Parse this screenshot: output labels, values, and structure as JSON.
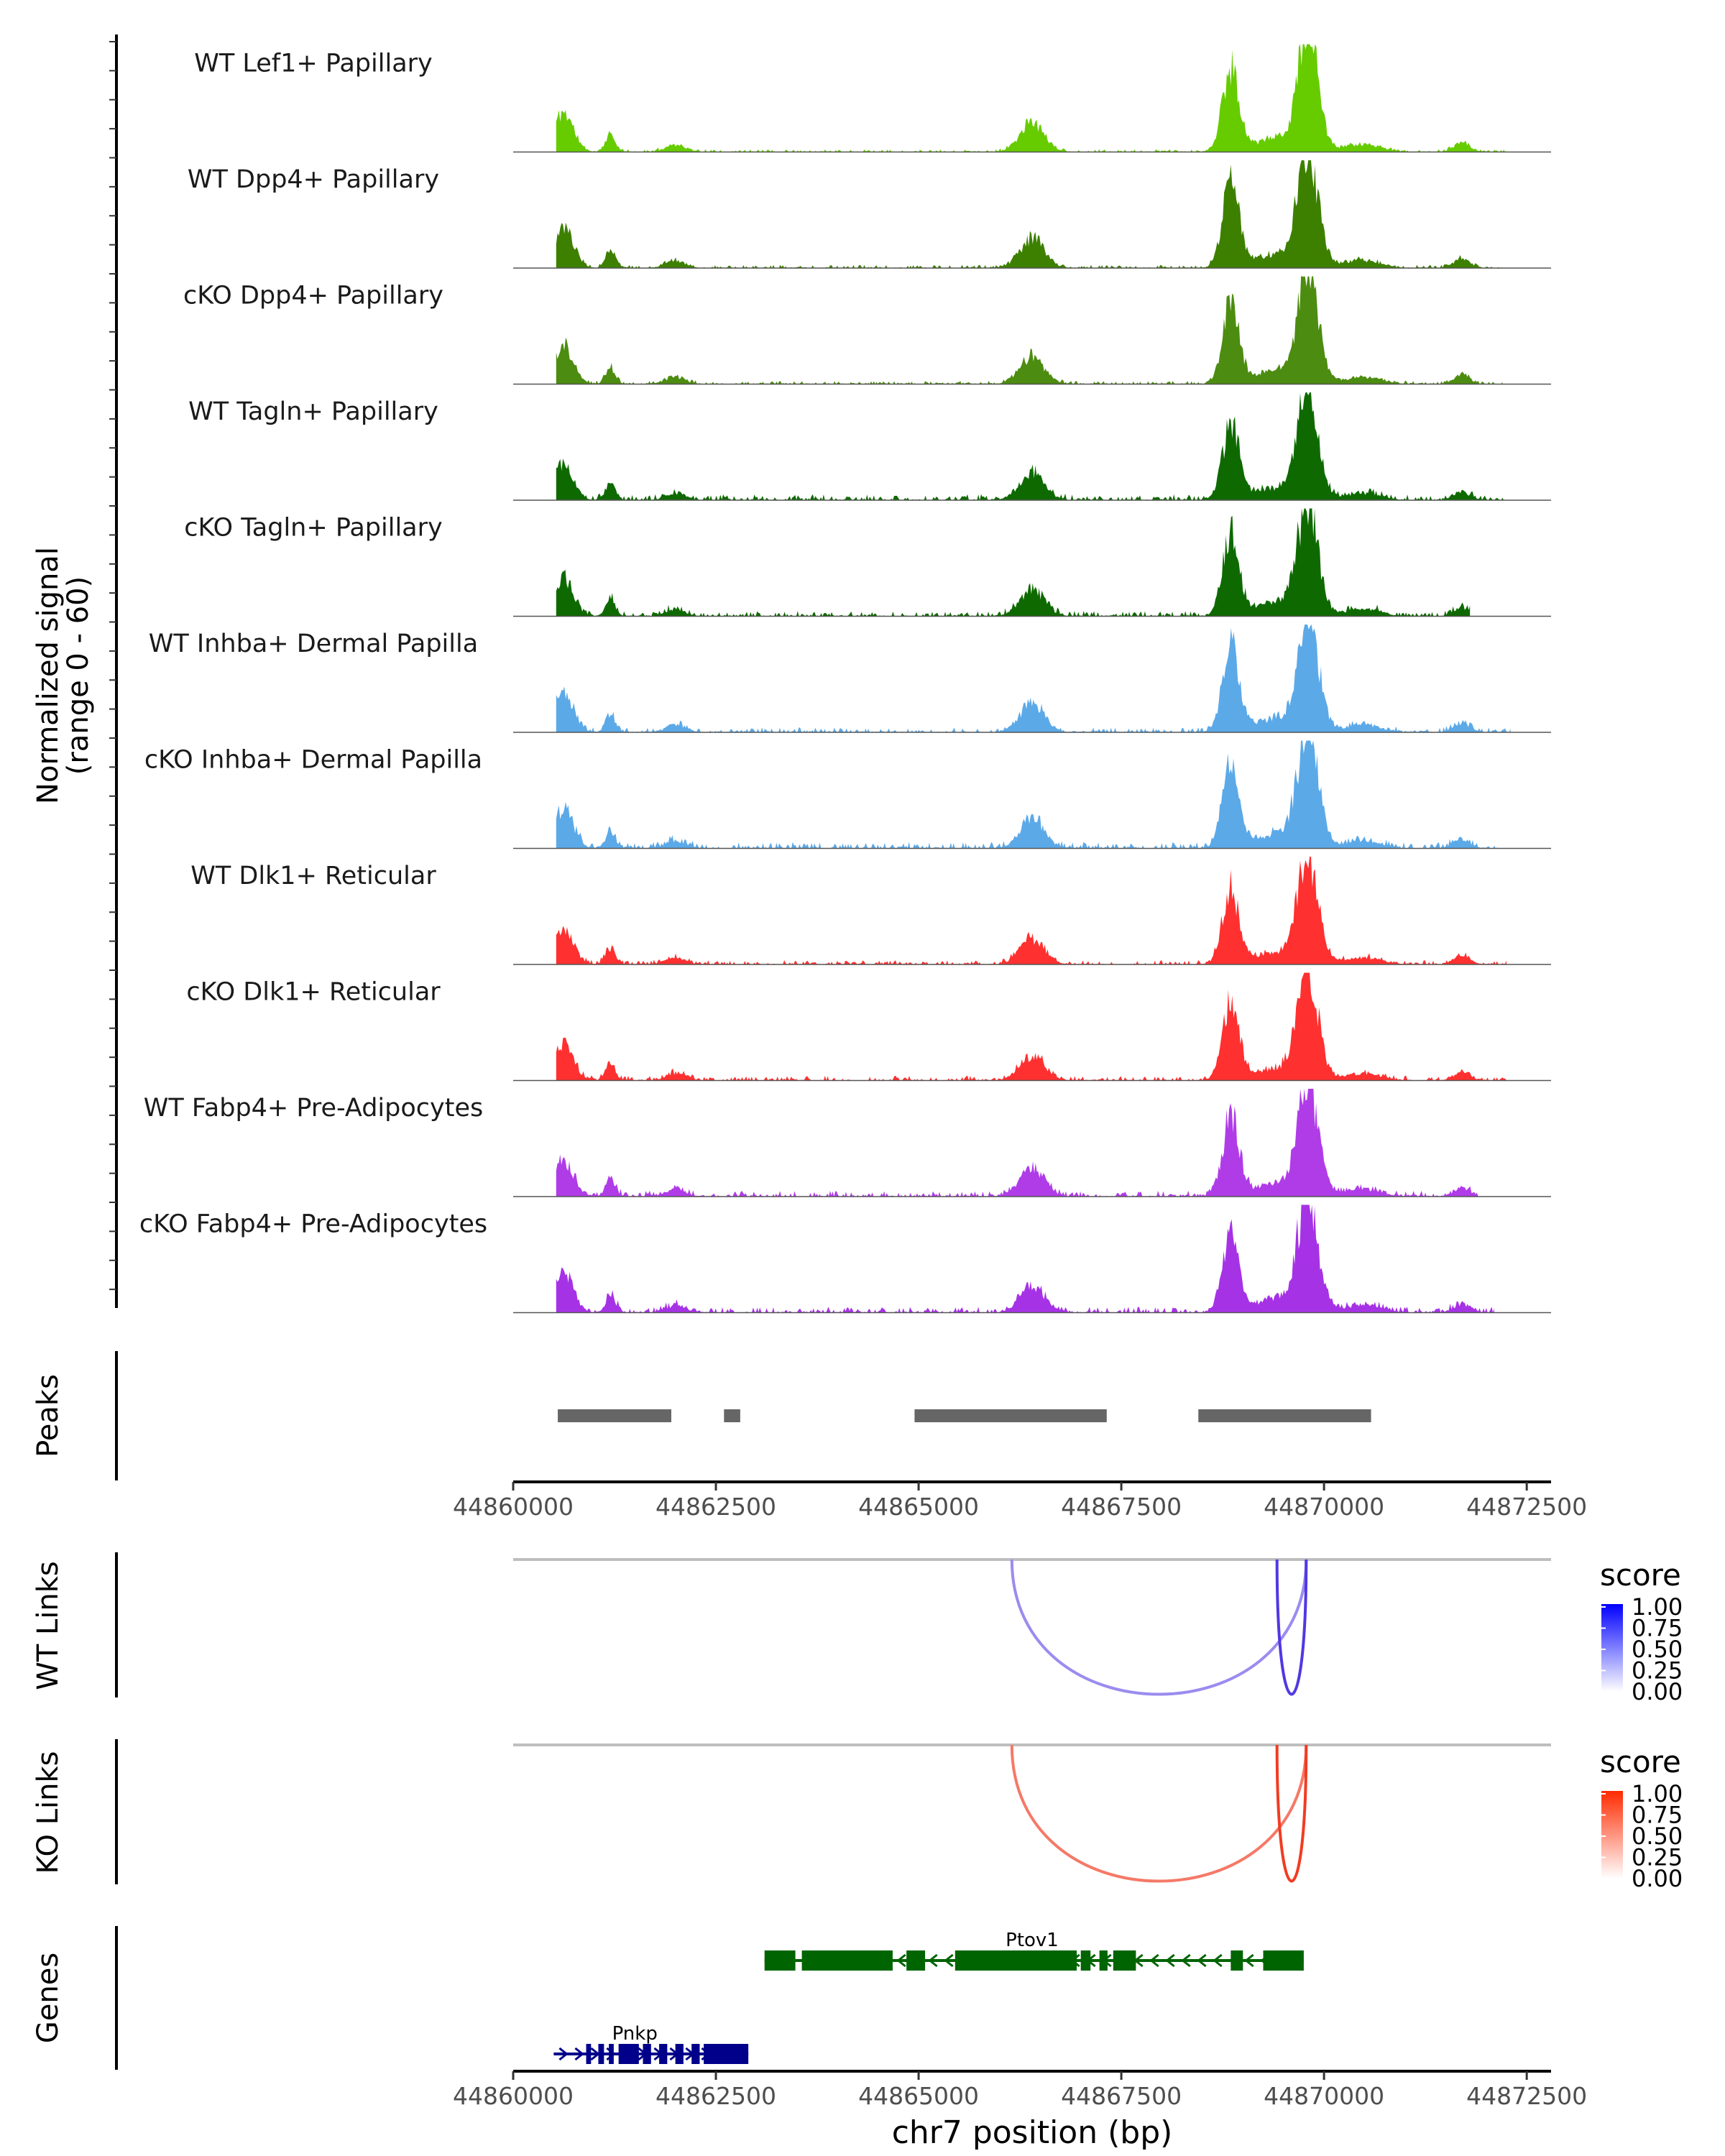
{
  "chart_data": [
    {
      "type": "area",
      "panel": "coverage",
      "ylabel": "Normalized signal",
      "ylabel_sub": "(range 0 - 60)",
      "ylim": [
        0,
        60
      ],
      "xlim": [
        44860000,
        44872800
      ],
      "track_baseline_extent": [
        44860000,
        44872800
      ],
      "peaks": [
        [
          44860620,
          0.12,
          22
        ],
        [
          44861200,
          0.06,
          10
        ],
        [
          44862000,
          0.12,
          4
        ],
        [
          44866400,
          0.15,
          16
        ],
        [
          44868850,
          0.1,
          46
        ],
        [
          44869800,
          0.12,
          63
        ],
        [
          44869500,
          0.35,
          8
        ],
        [
          44870500,
          0.2,
          4
        ],
        [
          44871700,
          0.1,
          5
        ]
      ],
      "series": [
        {
          "name": "WT Lef1+ Papillary",
          "color": "#66CC00",
          "data_end": 44872250,
          "scale": 1.0,
          "noise": 0.25,
          "seed": 11
        },
        {
          "name": "WT Dpp4+ Papillary",
          "color": "#3D8000",
          "data_end": 44872250,
          "scale": 1.0,
          "noise": 0.3,
          "seed": 23
        },
        {
          "name": "cKO Dpp4+ Papillary",
          "color": "#4C8C10",
          "data_end": 44872200,
          "scale": 0.95,
          "noise": 0.3,
          "seed": 37
        },
        {
          "name": "WT Tagln+ Papillary",
          "color": "#0E6A00",
          "data_end": 44872250,
          "scale": 0.9,
          "noise": 0.55,
          "seed": 41
        },
        {
          "name": "cKO Tagln+ Papillary",
          "color": "#0E6A00",
          "data_end": 44871800,
          "scale": 0.95,
          "noise": 0.5,
          "seed": 53
        },
        {
          "name": "WT Inhba+ Dermal Papilla",
          "color": "#5CA9E8",
          "data_end": 44872300,
          "scale": 1.0,
          "noise": 0.45,
          "seed": 67
        },
        {
          "name": "cKO Inhba+ Dermal Papilla",
          "color": "#5CA9E8",
          "data_end": 44872200,
          "scale": 1.0,
          "noise": 0.6,
          "seed": 79
        },
        {
          "name": "WT Dlk1+ Reticular",
          "color": "#FF3030",
          "data_end": 44872250,
          "scale": 0.9,
          "noise": 0.4,
          "seed": 83
        },
        {
          "name": "cKO Dlk1+ Reticular",
          "color": "#FF3030",
          "data_end": 44872250,
          "scale": 0.9,
          "noise": 0.45,
          "seed": 97
        },
        {
          "name": "WT Fabp4+ Pre-Adipocytes",
          "color": "#B03CE8",
          "data_end": 44871900,
          "scale": 0.95,
          "noise": 0.55,
          "seed": 101
        },
        {
          "name": "cKO Fabp4+ Pre-Adipocytes",
          "color": "#A632E6",
          "data_end": 44872100,
          "scale": 0.95,
          "noise": 0.55,
          "seed": 113
        }
      ]
    },
    {
      "type": "table",
      "panel": "peaks",
      "ylabel": "Peaks",
      "color": "#666666",
      "intervals": [
        [
          44860550,
          44861950
        ],
        [
          44862600,
          44862800
        ],
        [
          44864950,
          44867320
        ],
        [
          44868450,
          44870580
        ]
      ],
      "xticks": [
        44860000,
        44862500,
        44865000,
        44867500,
        44870000,
        44872500
      ],
      "xtick_labels": [
        "44860000",
        "44862500",
        "44865000",
        "44867500",
        "44870000",
        "44872500"
      ]
    },
    {
      "type": "line",
      "panel": "links",
      "ylabel": "WT Links",
      "legend_title": "score",
      "legend_ticks": [
        "1.00",
        "0.75",
        "0.50",
        "0.25",
        "0.00"
      ],
      "baseline_color": "#BEBEBE",
      "arcs": [
        {
          "start": 44866150,
          "end": 44869780,
          "score": 0.35,
          "depth": 1.0
        },
        {
          "start": 44869420,
          "end": 44869780,
          "score": 0.85,
          "depth": 1.0
        }
      ]
    },
    {
      "type": "line",
      "panel": "links",
      "ylabel": "KO Links",
      "legend_title": "score",
      "legend_ticks": [
        "1.00",
        "0.75",
        "0.50",
        "0.25",
        "0.00"
      ],
      "baseline_color": "#BEBEBE",
      "arcs": [
        {
          "start": 44866150,
          "end": 44869780,
          "score": 0.55,
          "depth": 1.0
        },
        {
          "start": 44869420,
          "end": 44869780,
          "score": 0.95,
          "depth": 1.0
        }
      ]
    },
    {
      "type": "table",
      "panel": "genes",
      "ylabel": "Genes",
      "xlabel": "chr7 position (bp)",
      "xticks": [
        44860000,
        44862500,
        44865000,
        44867500,
        44870000,
        44872500
      ],
      "xtick_labels": [
        "44860000",
        "44862500",
        "44865000",
        "44867500",
        "44870000",
        "44872500"
      ],
      "genes": [
        {
          "name": "Ptov1",
          "strand": "-",
          "color": "#006400",
          "row": 0,
          "start": 44863100,
          "end": 44869750,
          "exons": [
            [
              44863100,
              44863480
            ],
            [
              44863560,
              44864680
            ],
            [
              44864850,
              44865080
            ],
            [
              44865450,
              44866950
            ],
            [
              44867000,
              44867120
            ],
            [
              44867230,
              44867330
            ],
            [
              44867400,
              44867680
            ],
            [
              44868850,
              44869000
            ],
            [
              44869250,
              44869750
            ]
          ]
        },
        {
          "name": "Pnkp",
          "strand": "+",
          "color": "#00008B",
          "row": 1,
          "start": 44860500,
          "end": 44862900,
          "exons": [
            [
              44860900,
              44860960
            ],
            [
              44861050,
              44861120
            ],
            [
              44861180,
              44861240
            ],
            [
              44861300,
              44861550
            ],
            [
              44861600,
              44861700
            ],
            [
              44861800,
              44861900
            ],
            [
              44862000,
              44862100
            ],
            [
              44862200,
              44862300
            ],
            [
              44862350,
              44862900
            ]
          ]
        }
      ]
    }
  ]
}
